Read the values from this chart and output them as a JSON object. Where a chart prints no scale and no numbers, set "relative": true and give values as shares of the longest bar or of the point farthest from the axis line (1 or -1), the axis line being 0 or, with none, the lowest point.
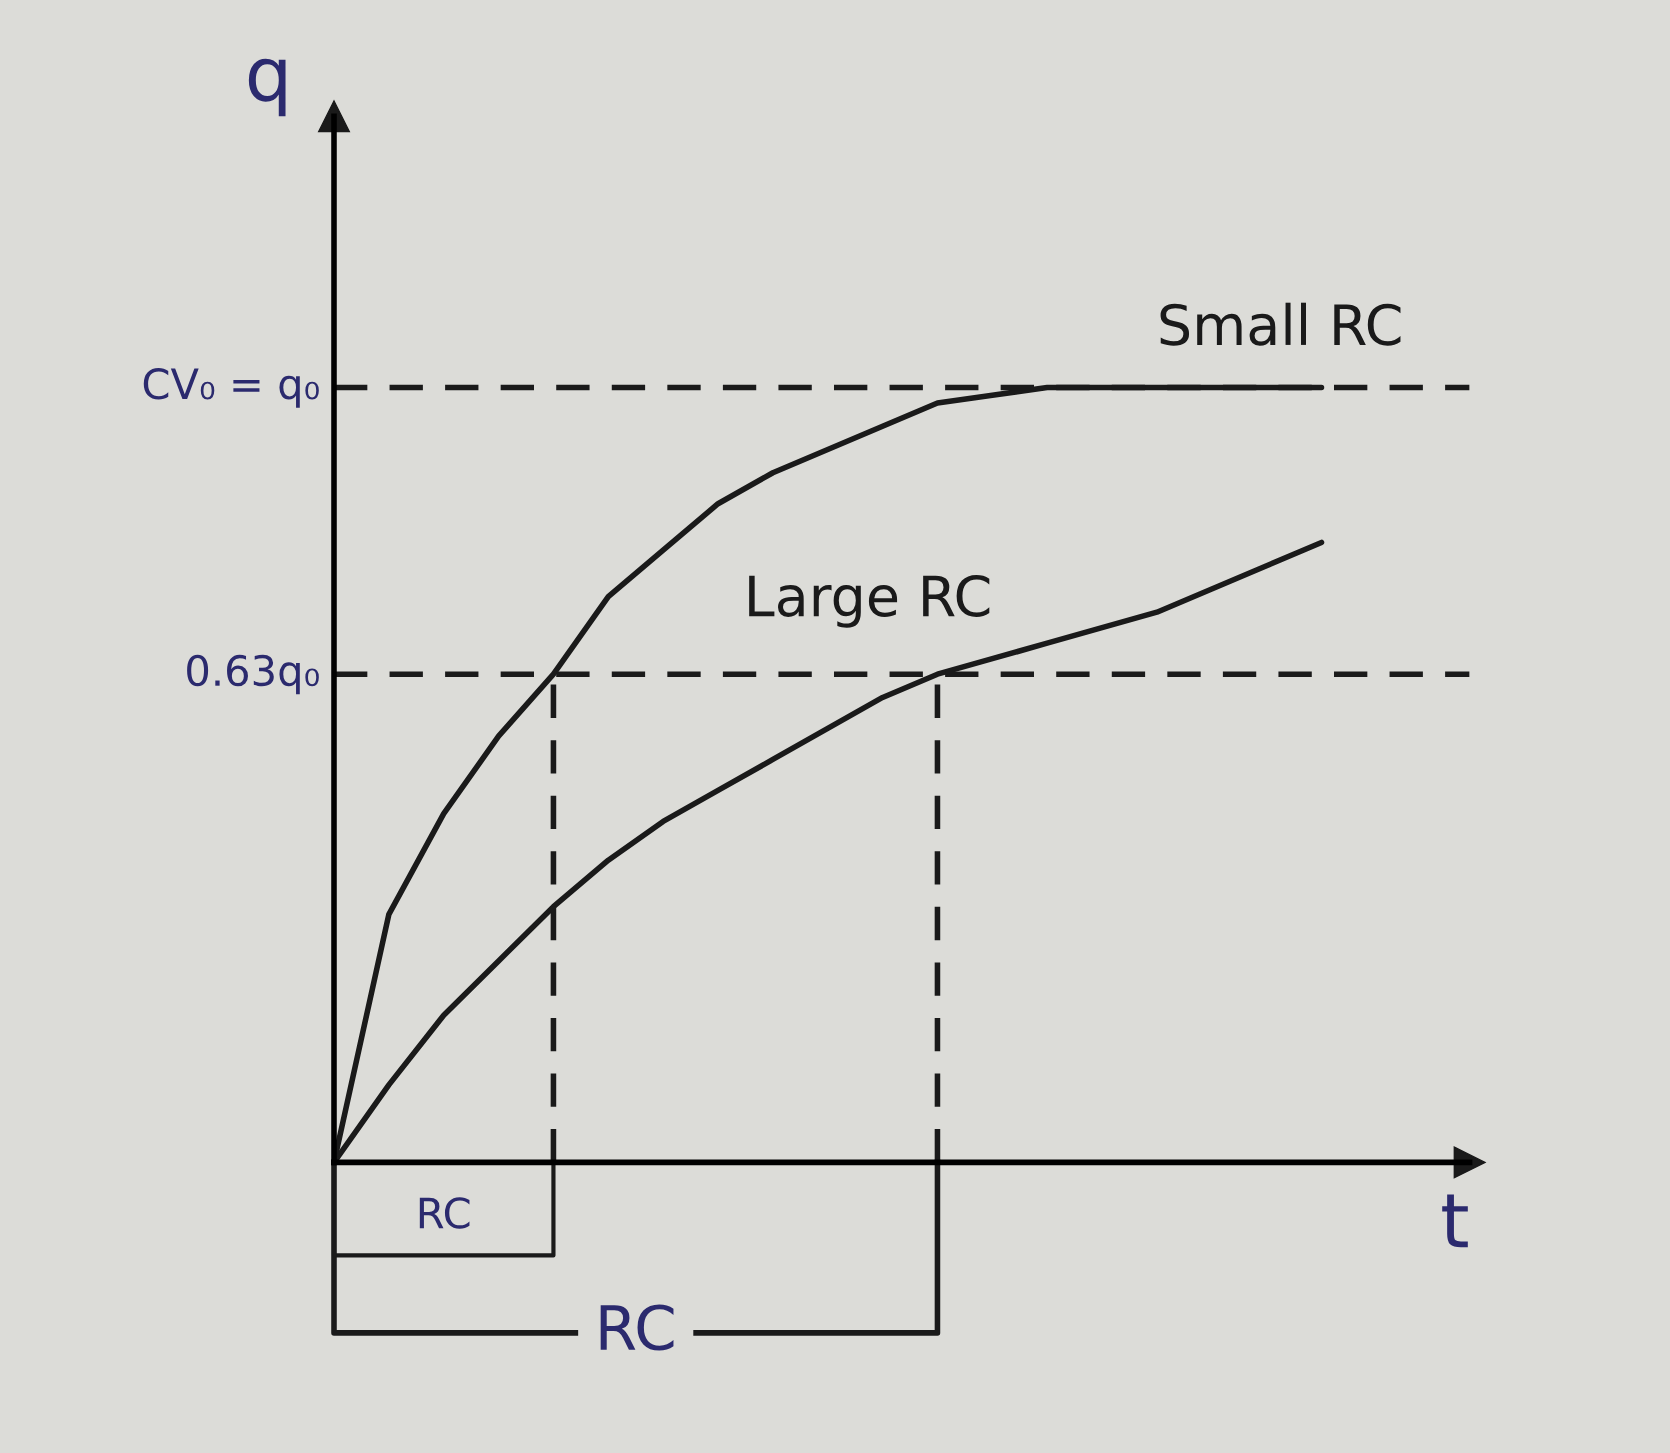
{
  "chart_data": {
    "type": "line",
    "xlabel": "t",
    "ylabel": "q",
    "categories": [
      null,
      null,
      null,
      null,
      null,
      null,
      null,
      null,
      null,
      null,
      null,
      null,
      null,
      null,
      null,
      null,
      null,
      null,
      null
    ],
    "relative": true,
    "tick_labels": false,
    "legend": false,
    "ref_lines": [
      {
        "axis": "y",
        "value": 0.63,
        "label": "0.63q₀",
        "line_style": "dashed",
        "color": "#1a1a1a"
      },
      {
        "axis": "y",
        "value": 1,
        "label": "CV₀ = q₀",
        "line_style": "dashed",
        "color": "#1a1a1a"
      }
    ],
    "marker": "none",
    "line_style": "solid",
    "series": [
      {
        "name": "Small RC",
        "color": "#1a1a1a",
        "values": [
          0,
          0.32,
          0.45,
          0.55,
          0.63,
          0.73,
          0.79,
          0.85,
          0.89,
          0.92,
          0.95,
          0.98,
          0.99,
          1.0,
          1.0,
          1.0,
          1.0,
          1.0,
          1.0
        ]
      },
      {
        "name": "Large RC",
        "color": "#1a1a1a",
        "values": [
          0,
          0.1,
          0.19,
          0.26,
          0.33,
          0.39,
          0.44,
          0.48,
          0.52,
          0.56,
          0.6,
          0.63,
          0.65,
          0.67,
          0.69,
          0.71,
          0.74,
          0.77,
          0.8
        ]
      }
    ],
    "annotations": [
      "RC",
      "RC"
    ]
  }
}
